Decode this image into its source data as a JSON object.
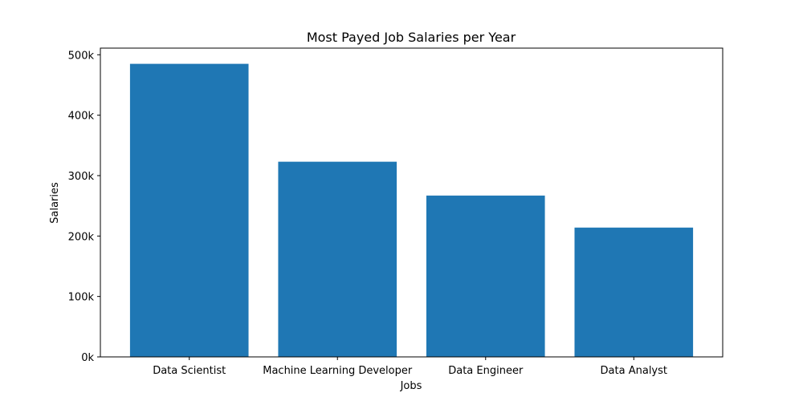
{
  "chart_data": {
    "type": "bar",
    "title": "Most Payed Job Salaries per Year",
    "xlabel": "Jobs",
    "ylabel": "Salaries",
    "categories": [
      "Data Scientist",
      "Machine Learning Developer",
      "Data Engineer",
      "Data Analyst"
    ],
    "values": [
      485000,
      323000,
      267000,
      214000
    ],
    "ylim": [
      0,
      511000
    ],
    "yticks": [
      0,
      100000,
      200000,
      300000,
      400000,
      500000
    ],
    "ytick_labels": [
      "0k",
      "100k",
      "200k",
      "300k",
      "400k",
      "500k"
    ],
    "grid": false,
    "legend": "none",
    "bar_color": "#1f77b4"
  }
}
